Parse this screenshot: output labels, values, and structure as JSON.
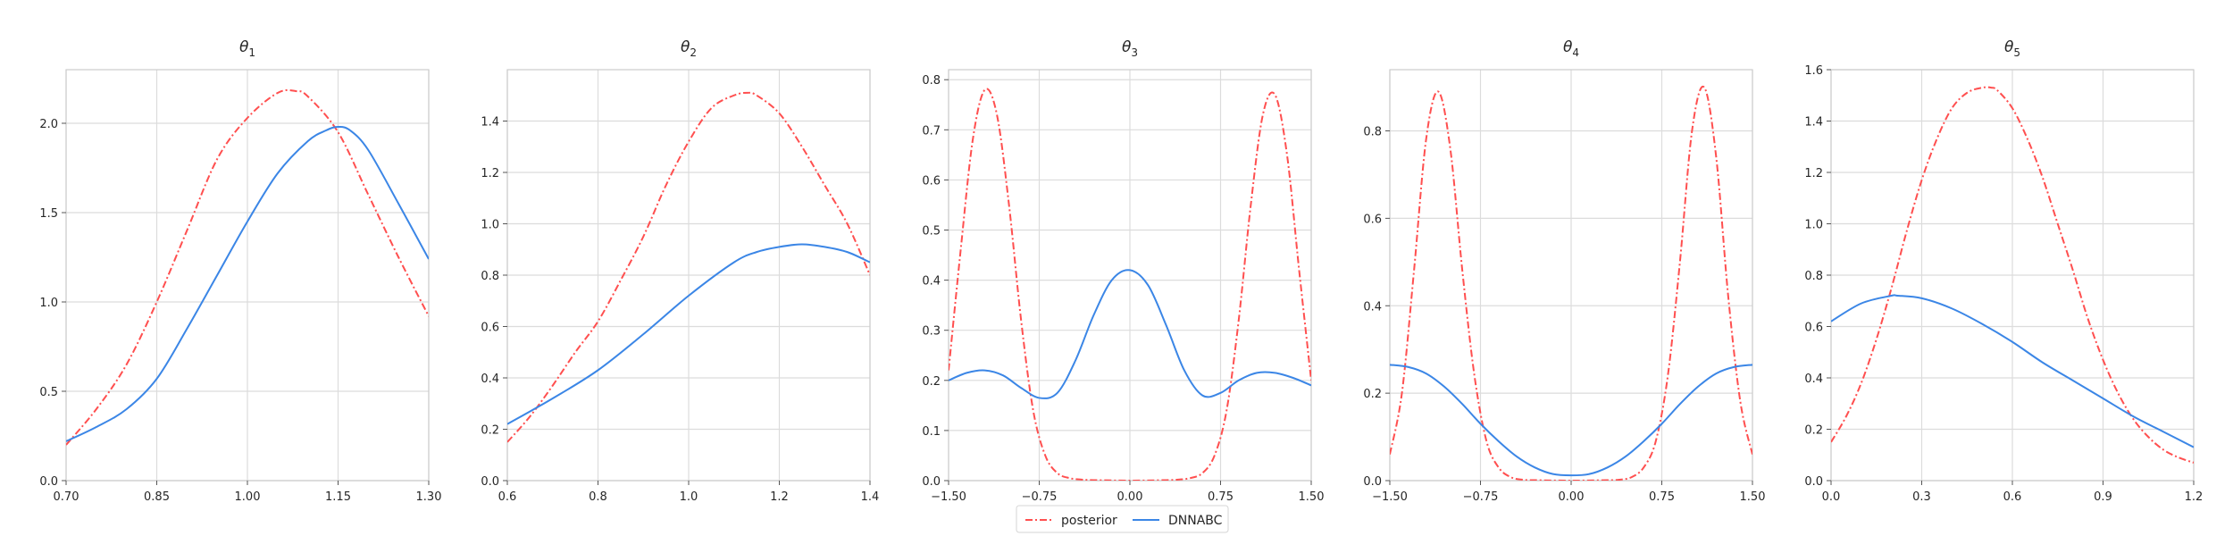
{
  "legend": {
    "entries": [
      {
        "label": "posterior",
        "color": "#ff4f4f",
        "style": "dashdot"
      },
      {
        "label": "DNNABC",
        "color": "#3b86e6",
        "style": "solid"
      }
    ],
    "placement": "bottom-center"
  },
  "chart_data": [
    {
      "type": "line",
      "title_base": "θ",
      "title_sub": "1",
      "xlim": [
        0.7,
        1.3
      ],
      "ylim": [
        0.0,
        2.3
      ],
      "xticks": [
        0.7,
        0.85,
        1.0,
        1.15,
        1.3
      ],
      "xtick_labels": [
        "0.70",
        "0.85",
        "1.00",
        "1.15",
        "1.30"
      ],
      "yticks": [
        0.0,
        0.5,
        1.0,
        1.5,
        2.0
      ],
      "ytick_labels": [
        "0.0",
        "0.5",
        "1.0",
        "1.5",
        "2.0"
      ],
      "grid": true,
      "series": [
        {
          "name": "posterior",
          "color": "#ff4f4f",
          "style": "dashdot",
          "x": [
            0.7,
            0.75,
            0.8,
            0.85,
            0.9,
            0.95,
            1.0,
            1.05,
            1.08,
            1.1,
            1.15,
            1.2,
            1.25,
            1.3
          ],
          "y": [
            0.2,
            0.4,
            0.65,
            1.0,
            1.4,
            1.8,
            2.03,
            2.17,
            2.18,
            2.15,
            1.95,
            1.6,
            1.25,
            0.92
          ]
        },
        {
          "name": "DNNABC",
          "color": "#3b86e6",
          "style": "solid",
          "x": [
            0.7,
            0.75,
            0.8,
            0.85,
            0.9,
            0.95,
            1.0,
            1.05,
            1.1,
            1.13,
            1.15,
            1.17,
            1.2,
            1.25,
            1.3
          ],
          "y": [
            0.22,
            0.3,
            0.4,
            0.57,
            0.85,
            1.15,
            1.45,
            1.72,
            1.9,
            1.96,
            1.98,
            1.96,
            1.85,
            1.55,
            1.24
          ]
        }
      ]
    },
    {
      "type": "line",
      "title_base": "θ",
      "title_sub": "2",
      "xlim": [
        0.6,
        1.4
      ],
      "ylim": [
        0.0,
        1.6
      ],
      "xticks": [
        0.6,
        0.8,
        1.0,
        1.2,
        1.4
      ],
      "xtick_labels": [
        "0.6",
        "0.8",
        "1.0",
        "1.2",
        "1.4"
      ],
      "yticks": [
        0.0,
        0.2,
        0.4,
        0.6,
        0.8,
        1.0,
        1.2,
        1.4
      ],
      "ytick_labels": [
        "0.0",
        "0.2",
        "0.4",
        "0.6",
        "0.8",
        "1.0",
        "1.2",
        "1.4"
      ],
      "grid": true,
      "series": [
        {
          "name": "posterior",
          "color": "#ff4f4f",
          "style": "dashdot",
          "x": [
            0.6,
            0.65,
            0.7,
            0.75,
            0.8,
            0.85,
            0.9,
            0.95,
            1.0,
            1.05,
            1.1,
            1.13,
            1.15,
            1.2,
            1.25,
            1.3,
            1.35,
            1.4
          ],
          "y": [
            0.15,
            0.25,
            0.37,
            0.5,
            0.62,
            0.78,
            0.95,
            1.15,
            1.32,
            1.45,
            1.5,
            1.51,
            1.5,
            1.43,
            1.3,
            1.15,
            1.0,
            0.8
          ]
        },
        {
          "name": "DNNABC",
          "color": "#3b86e6",
          "style": "solid",
          "x": [
            0.6,
            0.7,
            0.8,
            0.9,
            1.0,
            1.1,
            1.15,
            1.2,
            1.25,
            1.3,
            1.35,
            1.4
          ],
          "y": [
            0.22,
            0.32,
            0.43,
            0.57,
            0.72,
            0.85,
            0.89,
            0.91,
            0.92,
            0.91,
            0.89,
            0.85
          ]
        }
      ]
    },
    {
      "type": "line",
      "title_base": "θ",
      "title_sub": "3",
      "xlim": [
        -1.5,
        1.5
      ],
      "ylim": [
        0.0,
        0.82
      ],
      "xticks": [
        -1.5,
        -0.75,
        0.0,
        0.75,
        1.5
      ],
      "xtick_labels": [
        "−1.50",
        "−0.75",
        "0.00",
        "0.75",
        "1.50"
      ],
      "yticks": [
        0.0,
        0.1,
        0.2,
        0.3,
        0.4,
        0.5,
        0.6,
        0.7,
        0.8
      ],
      "ytick_labels": [
        "0.0",
        "0.1",
        "0.2",
        "0.3",
        "0.4",
        "0.5",
        "0.6",
        "0.7",
        "0.8"
      ],
      "grid": true,
      "series": [
        {
          "name": "posterior",
          "color": "#ff4f4f",
          "style": "dashdot",
          "x": [
            -1.5,
            -1.4,
            -1.3,
            -1.2,
            -1.1,
            -1.0,
            -0.9,
            -0.8,
            -0.7,
            -0.6,
            -0.5,
            -0.4,
            -0.3,
            0.0,
            0.3,
            0.4,
            0.5,
            0.6,
            0.7,
            0.8,
            0.9,
            1.0,
            1.1,
            1.2,
            1.3,
            1.4,
            1.5
          ],
          "y": [
            0.22,
            0.46,
            0.68,
            0.78,
            0.73,
            0.55,
            0.32,
            0.14,
            0.05,
            0.015,
            0.005,
            0.002,
            0.001,
            0.0,
            0.001,
            0.002,
            0.005,
            0.015,
            0.05,
            0.14,
            0.32,
            0.55,
            0.73,
            0.77,
            0.65,
            0.42,
            0.2
          ]
        },
        {
          "name": "DNNABC",
          "color": "#3b86e6",
          "style": "solid",
          "x": [
            -1.5,
            -1.35,
            -1.2,
            -1.05,
            -0.9,
            -0.75,
            -0.6,
            -0.45,
            -0.3,
            -0.15,
            0.0,
            0.15,
            0.3,
            0.45,
            0.6,
            0.75,
            0.9,
            1.05,
            1.2,
            1.35,
            1.5
          ],
          "y": [
            0.2,
            0.215,
            0.22,
            0.21,
            0.185,
            0.165,
            0.175,
            0.24,
            0.33,
            0.4,
            0.42,
            0.39,
            0.31,
            0.22,
            0.17,
            0.175,
            0.2,
            0.215,
            0.215,
            0.205,
            0.19
          ]
        }
      ]
    },
    {
      "type": "line",
      "title_base": "θ",
      "title_sub": "4",
      "xlim": [
        -1.5,
        1.5
      ],
      "ylim": [
        0.0,
        0.94
      ],
      "xticks": [
        -1.5,
        -0.75,
        0.0,
        0.75,
        1.5
      ],
      "xtick_labels": [
        "−1.50",
        "−0.75",
        "0.00",
        "0.75",
        "1.50"
      ],
      "yticks": [
        0.0,
        0.2,
        0.4,
        0.6,
        0.8
      ],
      "ytick_labels": [
        "0.0",
        "0.2",
        "0.4",
        "0.6",
        "0.8"
      ],
      "grid": true,
      "series": [
        {
          "name": "posterior",
          "color": "#ff4f4f",
          "style": "dashdot",
          "x": [
            -1.5,
            -1.4,
            -1.3,
            -1.2,
            -1.1,
            -1.0,
            -0.9,
            -0.8,
            -0.7,
            -0.6,
            -0.5,
            -0.4,
            -0.3,
            0.0,
            0.3,
            0.4,
            0.5,
            0.6,
            0.7,
            0.8,
            0.9,
            1.0,
            1.1,
            1.2,
            1.3,
            1.4,
            1.5
          ],
          "y": [
            0.06,
            0.2,
            0.48,
            0.78,
            0.89,
            0.76,
            0.48,
            0.24,
            0.09,
            0.03,
            0.008,
            0.002,
            0.001,
            0.0,
            0.001,
            0.002,
            0.008,
            0.03,
            0.09,
            0.24,
            0.5,
            0.8,
            0.9,
            0.74,
            0.42,
            0.18,
            0.06
          ]
        },
        {
          "name": "DNNABC",
          "color": "#3b86e6",
          "style": "solid",
          "x": [
            -1.5,
            -1.35,
            -1.2,
            -1.05,
            -0.9,
            -0.75,
            -0.6,
            -0.45,
            -0.3,
            -0.15,
            0.0,
            0.15,
            0.3,
            0.45,
            0.6,
            0.75,
            0.9,
            1.05,
            1.2,
            1.35,
            1.5
          ],
          "y": [
            0.265,
            0.26,
            0.245,
            0.215,
            0.175,
            0.13,
            0.09,
            0.055,
            0.03,
            0.015,
            0.012,
            0.015,
            0.03,
            0.055,
            0.09,
            0.13,
            0.175,
            0.215,
            0.245,
            0.26,
            0.265
          ]
        }
      ]
    },
    {
      "type": "line",
      "title_base": "θ",
      "title_sub": "5",
      "xlim": [
        0.0,
        1.2
      ],
      "ylim": [
        0.0,
        1.6
      ],
      "xticks": [
        0.0,
        0.3,
        0.6,
        0.9,
        1.2
      ],
      "xtick_labels": [
        "0.0",
        "0.3",
        "0.6",
        "0.9",
        "1.2"
      ],
      "yticks": [
        0.0,
        0.2,
        0.4,
        0.6,
        0.8,
        1.0,
        1.2,
        1.4,
        1.6
      ],
      "ytick_labels": [
        "0.0",
        "0.2",
        "0.4",
        "0.6",
        "0.8",
        "1.0",
        "1.2",
        "1.4",
        "1.6"
      ],
      "grid": true,
      "series": [
        {
          "name": "posterior",
          "color": "#ff4f4f",
          "style": "dashdot",
          "x": [
            0.0,
            0.05,
            0.1,
            0.15,
            0.2,
            0.25,
            0.3,
            0.35,
            0.4,
            0.45,
            0.5,
            0.53,
            0.55,
            0.6,
            0.65,
            0.7,
            0.75,
            0.8,
            0.85,
            0.9,
            0.95,
            1.0,
            1.05,
            1.1,
            1.15,
            1.2
          ],
          "y": [
            0.15,
            0.25,
            0.38,
            0.55,
            0.75,
            0.97,
            1.17,
            1.33,
            1.45,
            1.51,
            1.53,
            1.53,
            1.52,
            1.45,
            1.33,
            1.18,
            1.0,
            0.82,
            0.63,
            0.47,
            0.34,
            0.24,
            0.17,
            0.12,
            0.09,
            0.07
          ]
        },
        {
          "name": "DNNABC",
          "color": "#3b86e6",
          "style": "solid",
          "x": [
            0.0,
            0.1,
            0.2,
            0.22,
            0.3,
            0.4,
            0.5,
            0.6,
            0.7,
            0.8,
            0.9,
            1.0,
            1.1,
            1.2
          ],
          "y": [
            0.62,
            0.69,
            0.72,
            0.72,
            0.71,
            0.67,
            0.61,
            0.54,
            0.46,
            0.39,
            0.32,
            0.25,
            0.19,
            0.13
          ]
        }
      ]
    }
  ]
}
